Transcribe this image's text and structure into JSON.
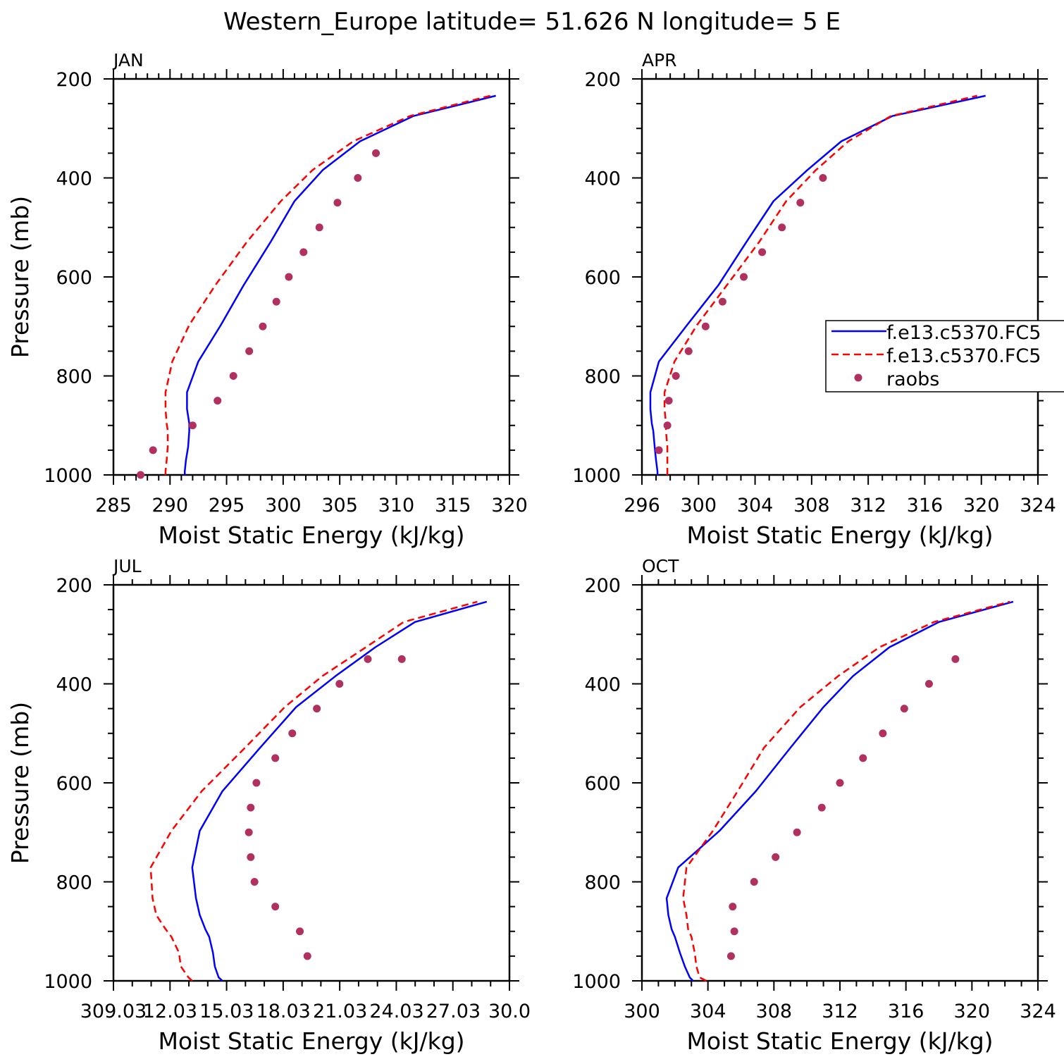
{
  "figure": {
    "title": "Western_Europe  latitude= 51.626 N longitude= 5 E"
  },
  "colors": {
    "model_solid": "#0000ff",
    "model_dashed": "#ff0000",
    "raobs": "#b03060",
    "axis": "#000000"
  },
  "legend": {
    "entries": [
      {
        "label": "f.e13.c5370.FC5",
        "style": "solid"
      },
      {
        "label": "f.e13.c5370.FC5",
        "style": "dashed"
      },
      {
        "label": "raobs",
        "style": "marker"
      }
    ]
  },
  "chart_data": [
    {
      "type": "line",
      "panel_label": "JAN",
      "xlabel": "Moist Static Energy (kJ/kg)",
      "ylabel": "Pressure (mb)",
      "xlim": [
        285,
        320
      ],
      "ylim": [
        1000,
        200
      ],
      "xticks": [
        285,
        290,
        295,
        300,
        305,
        310,
        315,
        320
      ],
      "xtick_labels": [
        "285",
        "290",
        "295",
        "300",
        "305",
        "310",
        "315",
        "320"
      ],
      "x_minor": 1,
      "yticks": [
        200,
        400,
        600,
        800,
        1000
      ],
      "ytick_labels": [
        "200",
        "400",
        "600",
        "800",
        "1000"
      ],
      "y_minor": 50,
      "series": [
        {
          "name": "f.e13.c5370.FC5",
          "style": "solid",
          "x": [
            291.3,
            291.3,
            291.4,
            291.6,
            291.7,
            291.7,
            291.5,
            291.5,
            292.5,
            294.5,
            296.5,
            298.9,
            301.0,
            303.5,
            306.8,
            311.5,
            318.8
          ],
          "y": [
            1000,
            993,
            971,
            943,
            911,
            896,
            867,
            833,
            771,
            697,
            617,
            529,
            447,
            384,
            326,
            275,
            234
          ]
        },
        {
          "name": "f.e13.c5370.FC5",
          "style": "dashed",
          "x": [
            289.6,
            289.6,
            289.7,
            289.8,
            289.8,
            289.7,
            289.6,
            289.6,
            290.2,
            291.7,
            294.0,
            296.8,
            299.8,
            302.6,
            306.2,
            311.2,
            318.3
          ],
          "y": [
            1000,
            993,
            971,
            943,
            911,
            896,
            867,
            833,
            771,
            697,
            617,
            529,
            447,
            384,
            326,
            275,
            234
          ]
        },
        {
          "name": "raobs",
          "style": "marker",
          "x": [
            287.4,
            288.5,
            292.0,
            294.2,
            295.6,
            297.0,
            298.2,
            299.4,
            300.5,
            301.8,
            303.2,
            304.8,
            306.6,
            308.2
          ],
          "y": [
            1000,
            950,
            900,
            850,
            800,
            750,
            700,
            650,
            600,
            550,
            500,
            450,
            400,
            350
          ]
        }
      ]
    },
    {
      "type": "line",
      "panel_label": "APR",
      "xlabel": "Moist Static Energy (kJ/kg)",
      "ylabel": "",
      "xlim": [
        296,
        324
      ],
      "ylim": [
        1000,
        200
      ],
      "xticks": [
        296,
        300,
        304,
        308,
        312,
        316,
        320,
        324
      ],
      "xtick_labels": [
        "296",
        "300",
        "304",
        "308",
        "312",
        "316",
        "320",
        "324"
      ],
      "x_minor": 1,
      "yticks": [
        200,
        400,
        600,
        800,
        1000
      ],
      "ytick_labels": [
        "200",
        "400",
        "600",
        "800",
        "1000"
      ],
      "y_minor": 50,
      "series": [
        {
          "name": "f.e13.c5370.FC5",
          "style": "solid",
          "x": [
            297.1,
            297.1,
            297.0,
            296.9,
            296.8,
            296.7,
            296.6,
            296.6,
            297.2,
            299.2,
            301.4,
            303.4,
            305.3,
            307.7,
            310.1,
            313.7,
            320.3
          ],
          "y": [
            1000,
            993,
            971,
            943,
            911,
            896,
            867,
            833,
            771,
            697,
            617,
            529,
            447,
            384,
            326,
            275,
            234
          ]
        },
        {
          "name": "f.e13.c5370.FC5",
          "style": "dashed",
          "x": [
            297.8,
            297.8,
            297.8,
            297.8,
            297.7,
            297.7,
            297.6,
            297.6,
            298.3,
            299.9,
            302.0,
            304.3,
            306.2,
            308.3,
            310.6,
            313.6,
            319.7
          ],
          "y": [
            1000,
            993,
            971,
            943,
            911,
            896,
            867,
            833,
            771,
            697,
            617,
            529,
            447,
            384,
            326,
            275,
            234
          ]
        },
        {
          "name": "raobs",
          "style": "marker",
          "x": [
            297.2,
            297.8,
            297.9,
            298.4,
            299.3,
            300.5,
            301.7,
            303.2,
            304.5,
            305.9,
            307.2,
            308.8
          ],
          "y": [
            950,
            900,
            850,
            800,
            750,
            700,
            650,
            600,
            550,
            500,
            450,
            400
          ]
        }
      ]
    },
    {
      "type": "line",
      "panel_label": "JUL",
      "xlabel": "Moist Static Energy (kJ/kg)",
      "ylabel": "Pressure (mb)",
      "xlim": [
        309.03,
        330.0
      ],
      "ylim": [
        1000,
        200
      ],
      "xticks": [
        309.03,
        312.03,
        315.03,
        318.03,
        321.03,
        324.03,
        327.03,
        330.0
      ],
      "xtick_labels": [
        "309.03",
        "12.03",
        "15.03",
        "18.03",
        "21.03",
        "24.03",
        "27.03",
        "30.0"
      ],
      "x_minor": 1,
      "yticks": [
        200,
        400,
        600,
        800,
        1000
      ],
      "ytick_labels": [
        "200",
        "400",
        "600",
        "800",
        "1000"
      ],
      "y_minor": 50,
      "series": [
        {
          "name": "f.e13.c5370.FC5",
          "style": "solid",
          "x": [
            314.8,
            314.6,
            314.4,
            314.3,
            314.1,
            313.9,
            313.6,
            313.4,
            313.2,
            313.6,
            314.8,
            316.8,
            318.7,
            320.8,
            322.9,
            325.0,
            328.8
          ],
          "y": [
            1000,
            993,
            971,
            943,
            911,
            896,
            867,
            833,
            771,
            697,
            617,
            529,
            447,
            384,
            326,
            275,
            234
          ]
        },
        {
          "name": "f.e13.c5370.FC5",
          "style": "dashed",
          "x": [
            313.2,
            313.0,
            312.6,
            312.5,
            312.1,
            311.8,
            311.3,
            311.1,
            311.0,
            312.1,
            313.7,
            316.0,
            318.1,
            320.1,
            322.4,
            324.4,
            328.3
          ],
          "y": [
            1000,
            993,
            971,
            943,
            911,
            896,
            867,
            833,
            771,
            697,
            617,
            529,
            447,
            384,
            326,
            275,
            234
          ]
        },
        {
          "name": "raobs",
          "style": "marker",
          "x": [
            319.3,
            318.9,
            317.6,
            316.5,
            316.3,
            316.2,
            316.3,
            316.6,
            317.6,
            318.5,
            319.8,
            321.0,
            322.5,
            324.3
          ],
          "y": [
            950,
            900,
            850,
            800,
            750,
            700,
            650,
            600,
            550,
            500,
            450,
            400,
            350,
            350
          ]
        }
      ]
    },
    {
      "type": "line",
      "panel_label": "OCT",
      "xlabel": "Moist Static Energy (kJ/kg)",
      "ylabel": "",
      "xlim": [
        300,
        324
      ],
      "ylim": [
        1000,
        200
      ],
      "xticks": [
        300,
        304,
        308,
        312,
        316,
        320,
        324
      ],
      "xtick_labels": [
        "300",
        "304",
        "308",
        "312",
        "316",
        "320",
        "324"
      ],
      "x_minor": 1,
      "yticks": [
        200,
        400,
        600,
        800,
        1000
      ],
      "ytick_labels": [
        "200",
        "400",
        "600",
        "800",
        "1000"
      ],
      "y_minor": 50,
      "series": [
        {
          "name": "f.e13.c5370.FC5",
          "style": "solid",
          "x": [
            303.1,
            302.9,
            302.6,
            302.3,
            302.0,
            301.8,
            301.6,
            301.5,
            302.2,
            304.7,
            306.9,
            309.0,
            311.0,
            312.8,
            315.0,
            318.0,
            322.5
          ],
          "y": [
            1000,
            993,
            971,
            943,
            911,
            896,
            867,
            833,
            771,
            697,
            617,
            529,
            447,
            384,
            326,
            275,
            234
          ]
        },
        {
          "name": "f.e13.c5370.FC5",
          "style": "dashed",
          "x": [
            303.9,
            303.5,
            303.3,
            303.2,
            303.0,
            302.8,
            302.7,
            302.5,
            302.7,
            304.3,
            305.8,
            307.4,
            309.6,
            311.9,
            314.4,
            317.7,
            322.3
          ],
          "y": [
            1000,
            993,
            971,
            943,
            911,
            896,
            867,
            833,
            771,
            697,
            617,
            529,
            447,
            384,
            326,
            275,
            234
          ]
        },
        {
          "name": "raobs",
          "style": "marker",
          "x": [
            305.4,
            305.6,
            305.5,
            306.8,
            308.1,
            309.4,
            310.9,
            312.0,
            313.4,
            314.6,
            315.9,
            317.4,
            319.0
          ],
          "y": [
            950,
            900,
            850,
            800,
            750,
            700,
            650,
            600,
            550,
            500,
            450,
            400,
            350
          ]
        }
      ]
    }
  ]
}
